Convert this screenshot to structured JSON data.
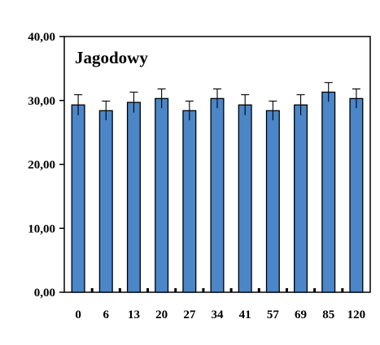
{
  "chart_data": {
    "type": "bar",
    "title": "Jagodowy",
    "xlabel": "",
    "ylabel": "",
    "categories": [
      "0",
      "6",
      "13",
      "20",
      "27",
      "34",
      "41",
      "57",
      "69",
      "85",
      "120"
    ],
    "series": [
      {
        "values": [
          29.3,
          28.4,
          29.7,
          30.3,
          28.4,
          30.3,
          29.3,
          28.4,
          29.3,
          31.3,
          30.3
        ],
        "errors": [
          1.6,
          1.5,
          1.6,
          1.5,
          1.5,
          1.5,
          1.6,
          1.5,
          1.6,
          1.5,
          1.5
        ]
      }
    ],
    "yticks": [
      "0,00",
      "10,00",
      "20,00",
      "30,00",
      "40,00"
    ],
    "ylim": [
      0,
      40
    ],
    "grid": false,
    "legend": "none",
    "bar_color": "#4a86c8",
    "bar_edge_color": "#000000"
  }
}
